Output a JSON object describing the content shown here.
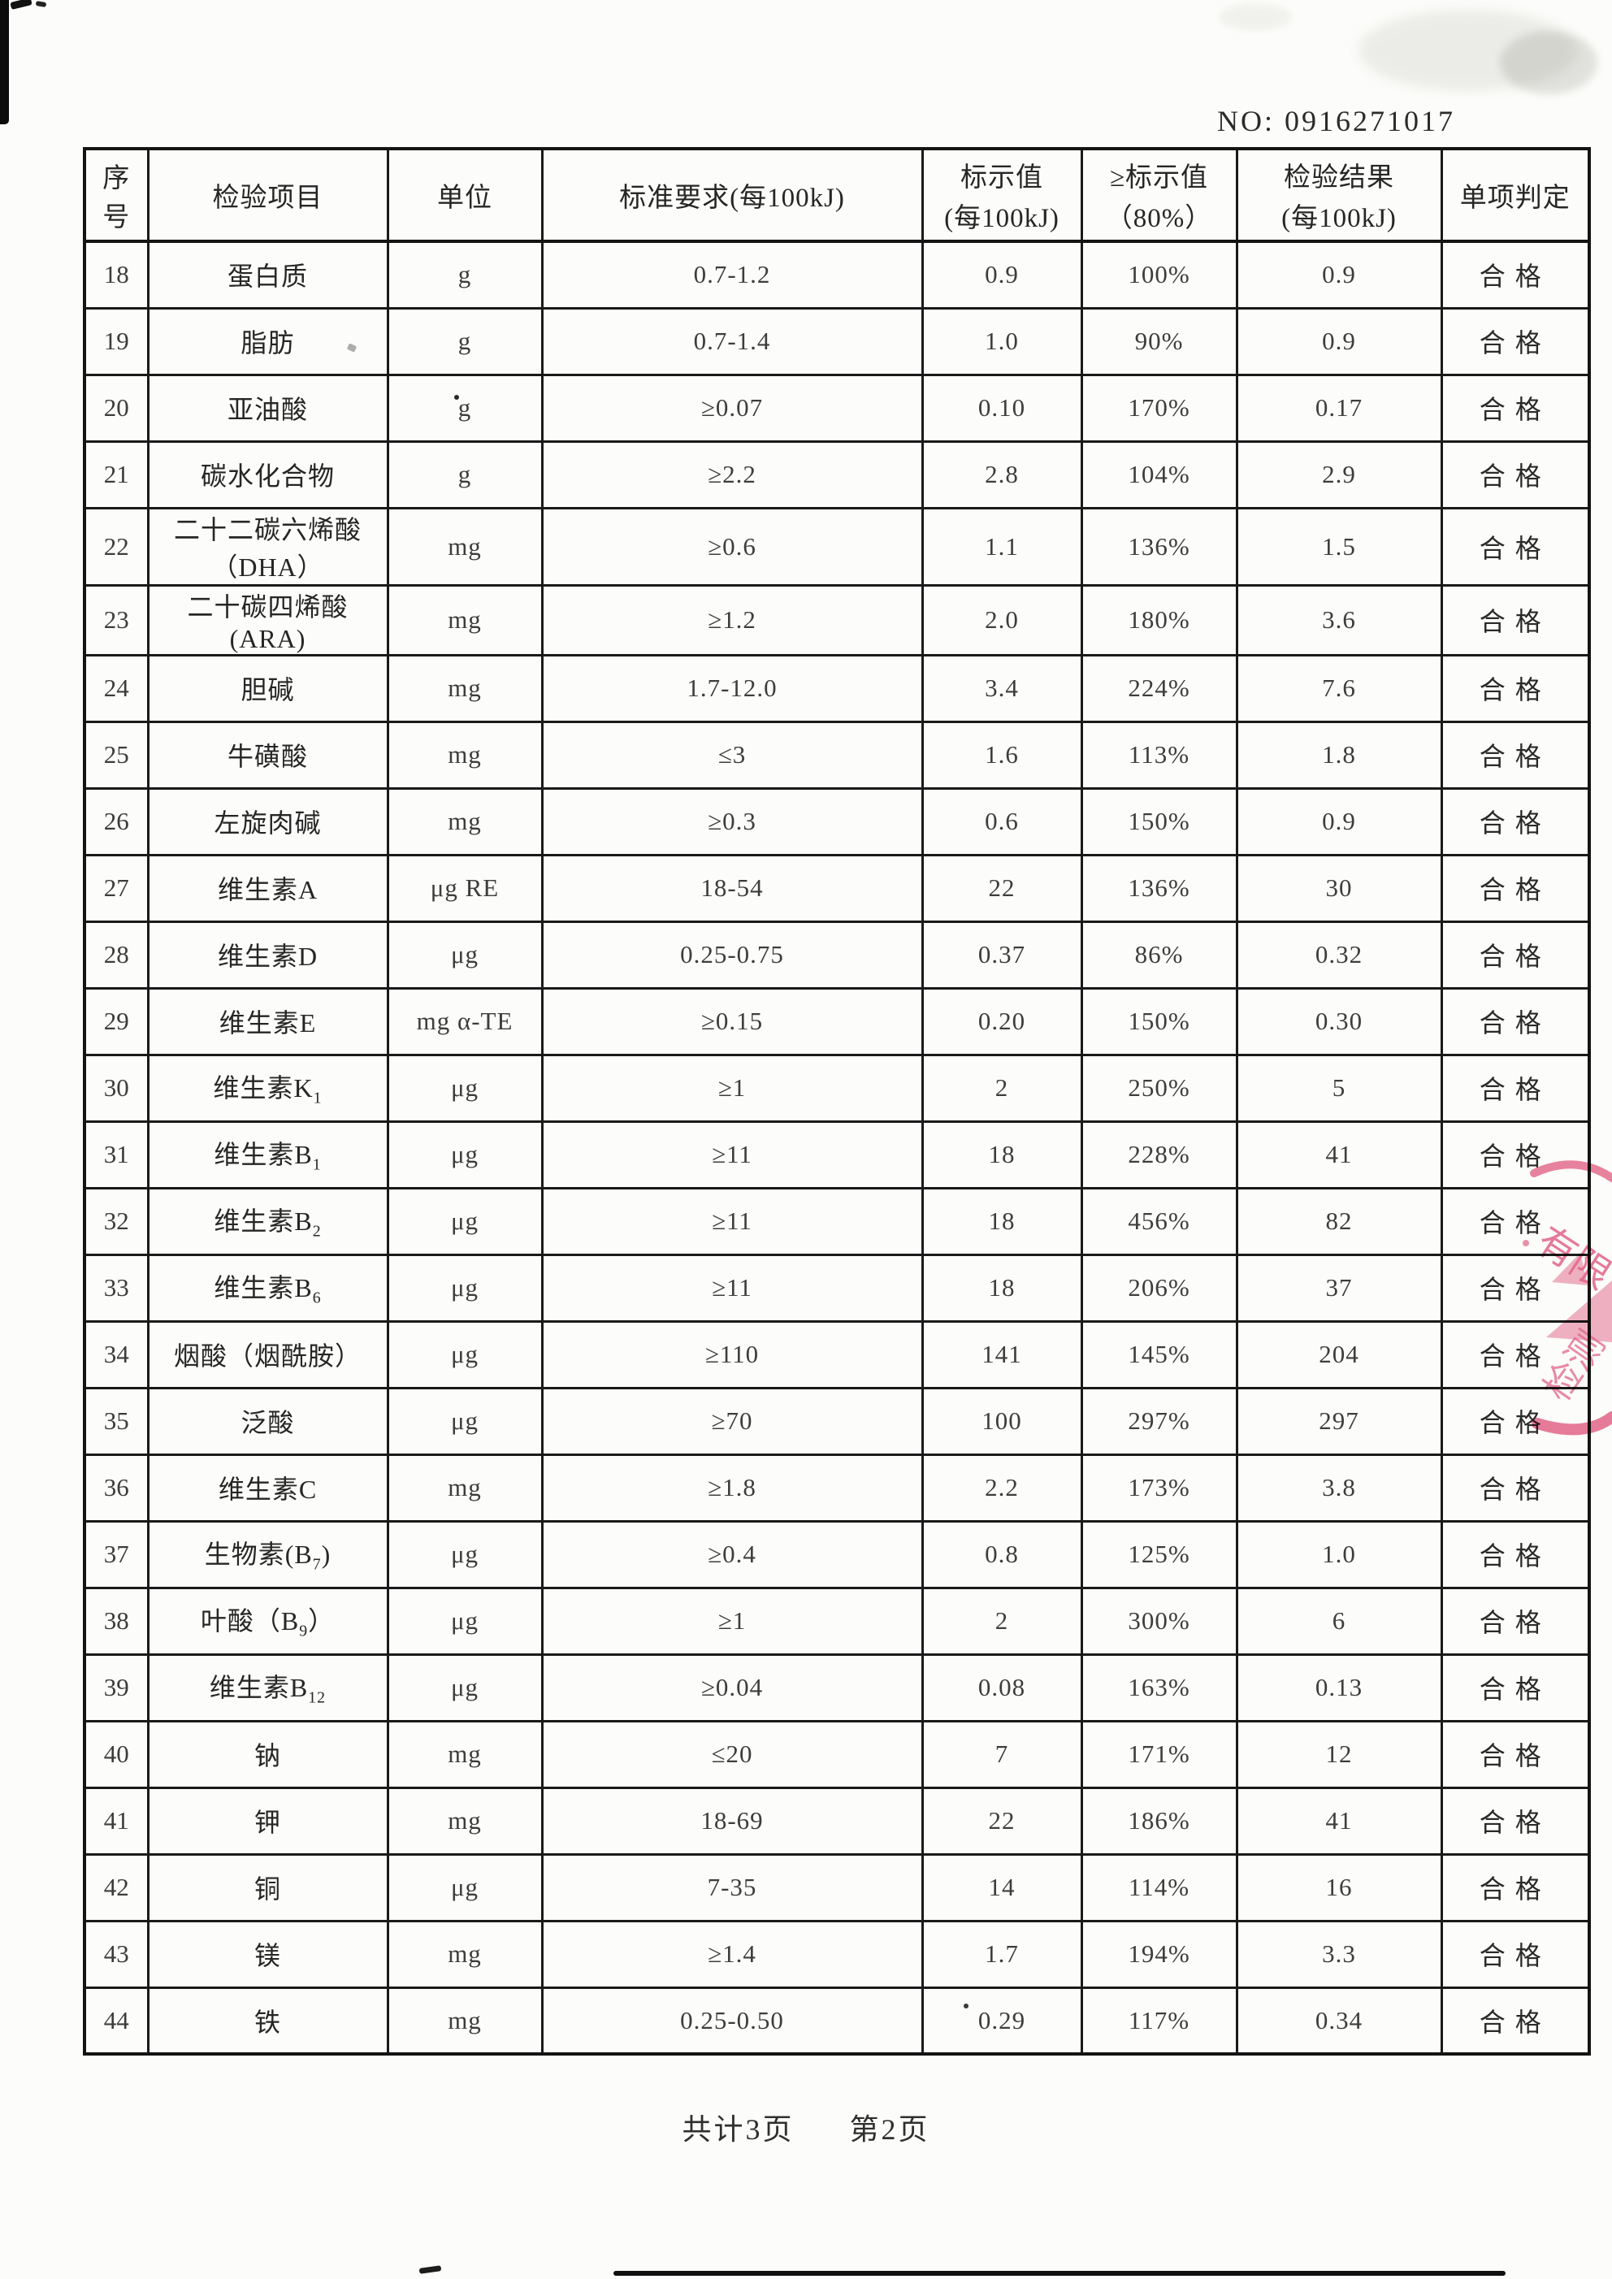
{
  "header": {
    "doc_no": "NO: 0916271017"
  },
  "table": {
    "columns": [
      {
        "line1": "序号",
        "line2": ""
      },
      {
        "line1": "检验项目",
        "line2": ""
      },
      {
        "line1": "单位",
        "line2": ""
      },
      {
        "line1": "标准要求(每100kJ)",
        "line2": ""
      },
      {
        "line1": "标示值",
        "line2": "(每100kJ)"
      },
      {
        "line1": "≥标示值",
        "line2": "（80%）"
      },
      {
        "line1": "检验结果",
        "line2": "(每100kJ)"
      },
      {
        "line1": "单项判定",
        "line2": ""
      }
    ],
    "rows": [
      {
        "no": "18",
        "item": "蛋白质",
        "sub": "",
        "tail": "",
        "item2": "",
        "unit": "g",
        "std": "0.7-1.2",
        "label": "0.9",
        "pct": "100%",
        "result": "0.9",
        "verdict": "合格"
      },
      {
        "no": "19",
        "item": "脂肪",
        "sub": "",
        "tail": "",
        "item2": "",
        "unit": "g",
        "std": "0.7-1.4",
        "label": "1.0",
        "pct": "90%",
        "result": "0.9",
        "verdict": "合格"
      },
      {
        "no": "20",
        "item": "亚油酸",
        "sub": "",
        "tail": "",
        "item2": "",
        "unit": "g",
        "std": "≥0.07",
        "label": "0.10",
        "pct": "170%",
        "result": "0.17",
        "verdict": "合格"
      },
      {
        "no": "21",
        "item": "碳水化合物",
        "sub": "",
        "tail": "",
        "item2": "",
        "unit": "g",
        "std": "≥2.2",
        "label": "2.8",
        "pct": "104%",
        "result": "2.9",
        "verdict": "合格"
      },
      {
        "no": "22",
        "item": "二十二碳六烯酸",
        "sub": "",
        "tail": "",
        "item2": "（DHA）",
        "unit": "mg",
        "std": "≥0.6",
        "label": "1.1",
        "pct": "136%",
        "result": "1.5",
        "verdict": "合格"
      },
      {
        "no": "23",
        "item": "二十碳四烯酸(ARA)",
        "sub": "",
        "tail": "",
        "item2": "",
        "unit": "mg",
        "std": "≥1.2",
        "label": "2.0",
        "pct": "180%",
        "result": "3.6",
        "verdict": "合格"
      },
      {
        "no": "24",
        "item": "胆碱",
        "sub": "",
        "tail": "",
        "item2": "",
        "unit": "mg",
        "std": "1.7-12.0",
        "label": "3.4",
        "pct": "224%",
        "result": "7.6",
        "verdict": "合格"
      },
      {
        "no": "25",
        "item": "牛磺酸",
        "sub": "",
        "tail": "",
        "item2": "",
        "unit": "mg",
        "std": "≤3",
        "label": "1.6",
        "pct": "113%",
        "result": "1.8",
        "verdict": "合格"
      },
      {
        "no": "26",
        "item": "左旋肉碱",
        "sub": "",
        "tail": "",
        "item2": "",
        "unit": "mg",
        "std": "≥0.3",
        "label": "0.6",
        "pct": "150%",
        "result": "0.9",
        "verdict": "合格"
      },
      {
        "no": "27",
        "item": "维生素A",
        "sub": "",
        "tail": "",
        "item2": "",
        "unit": "μg RE",
        "std": "18-54",
        "label": "22",
        "pct": "136%",
        "result": "30",
        "verdict": "合格"
      },
      {
        "no": "28",
        "item": "维生素D",
        "sub": "",
        "tail": "",
        "item2": "",
        "unit": "μg",
        "std": "0.25-0.75",
        "label": "0.37",
        "pct": "86%",
        "result": "0.32",
        "verdict": "合格"
      },
      {
        "no": "29",
        "item": "维生素E",
        "sub": "",
        "tail": "",
        "item2": "",
        "unit": "mg α-TE",
        "std": "≥0.15",
        "label": "0.20",
        "pct": "150%",
        "result": "0.30",
        "verdict": "合格"
      },
      {
        "no": "30",
        "item": "维生素K",
        "sub": "1",
        "tail": "",
        "item2": "",
        "unit": "μg",
        "std": "≥1",
        "label": "2",
        "pct": "250%",
        "result": "5",
        "verdict": "合格"
      },
      {
        "no": "31",
        "item": "维生素B",
        "sub": "1",
        "tail": "",
        "item2": "",
        "unit": "μg",
        "std": "≥11",
        "label": "18",
        "pct": "228%",
        "result": "41",
        "verdict": "合格"
      },
      {
        "no": "32",
        "item": "维生素B",
        "sub": "2",
        "tail": "",
        "item2": "",
        "unit": "μg",
        "std": "≥11",
        "label": "18",
        "pct": "456%",
        "result": "82",
        "verdict": "合格"
      },
      {
        "no": "33",
        "item": "维生素B",
        "sub": "6",
        "tail": "",
        "item2": "",
        "unit": "μg",
        "std": "≥11",
        "label": "18",
        "pct": "206%",
        "result": "37",
        "verdict": "合格"
      },
      {
        "no": "34",
        "item": "烟酸（烟酰胺）",
        "sub": "",
        "tail": "",
        "item2": "",
        "unit": "μg",
        "std": "≥110",
        "label": "141",
        "pct": "145%",
        "result": "204",
        "verdict": "合格"
      },
      {
        "no": "35",
        "item": "泛酸",
        "sub": "",
        "tail": "",
        "item2": "",
        "unit": "μg",
        "std": "≥70",
        "label": "100",
        "pct": "297%",
        "result": "297",
        "verdict": "合格"
      },
      {
        "no": "36",
        "item": "维生素C",
        "sub": "",
        "tail": "",
        "item2": "",
        "unit": "mg",
        "std": "≥1.8",
        "label": "2.2",
        "pct": "173%",
        "result": "3.8",
        "verdict": "合格"
      },
      {
        "no": "37",
        "item": "生物素(B",
        "sub": "7",
        "tail": ")",
        "item2": "",
        "unit": "μg",
        "std": "≥0.4",
        "label": "0.8",
        "pct": "125%",
        "result": "1.0",
        "verdict": "合格"
      },
      {
        "no": "38",
        "item": "叶酸（B",
        "sub": "9",
        "tail": "）",
        "item2": "",
        "unit": "μg",
        "std": "≥1",
        "label": "2",
        "pct": "300%",
        "result": "6",
        "verdict": "合格"
      },
      {
        "no": "39",
        "item": "维生素B",
        "sub": "12",
        "tail": "",
        "item2": "",
        "unit": "μg",
        "std": "≥0.04",
        "label": "0.08",
        "pct": "163%",
        "result": "0.13",
        "verdict": "合格"
      },
      {
        "no": "40",
        "item": "钠",
        "sub": "",
        "tail": "",
        "item2": "",
        "unit": "mg",
        "std": "≤20",
        "label": "7",
        "pct": "171%",
        "result": "12",
        "verdict": "合格"
      },
      {
        "no": "41",
        "item": "钾",
        "sub": "",
        "tail": "",
        "item2": "",
        "unit": "mg",
        "std": "18-69",
        "label": "22",
        "pct": "186%",
        "result": "41",
        "verdict": "合格"
      },
      {
        "no": "42",
        "item": "铜",
        "sub": "",
        "tail": "",
        "item2": "",
        "unit": "μg",
        "std": "7-35",
        "label": "14",
        "pct": "114%",
        "result": "16",
        "verdict": "合格"
      },
      {
        "no": "43",
        "item": "镁",
        "sub": "",
        "tail": "",
        "item2": "",
        "unit": "mg",
        "std": "≥1.4",
        "label": "1.7",
        "pct": "194%",
        "result": "3.3",
        "verdict": "合格"
      },
      {
        "no": "44",
        "item": "铁",
        "sub": "",
        "tail": "",
        "item2": "",
        "unit": "mg",
        "std": "0.25-0.50",
        "label": "0.29",
        "pct": "117%",
        "result": "0.34",
        "verdict": "合格"
      }
    ]
  },
  "footer": {
    "pages_total": "共计3页",
    "page_current": "第2页"
  },
  "stamp": {
    "text_top": "有限",
    "text_bottom": "检测",
    "color": "#e25880"
  }
}
